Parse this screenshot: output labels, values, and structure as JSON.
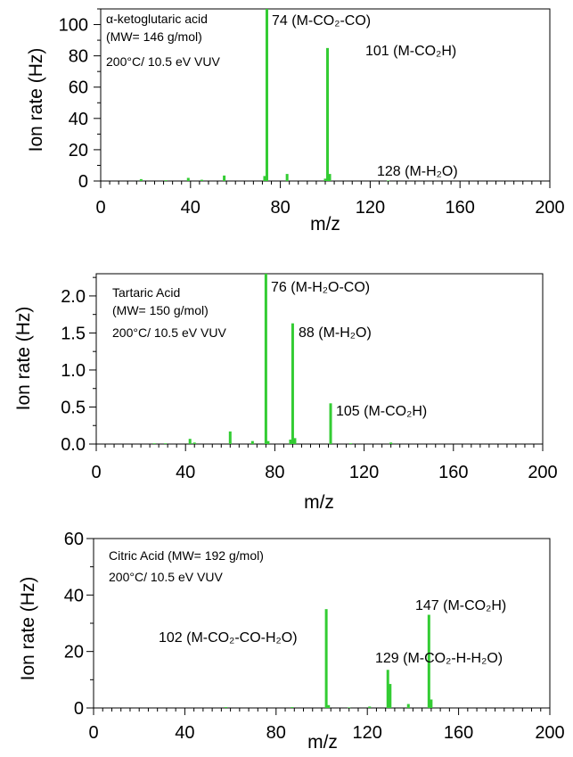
{
  "figure": {
    "panels": [
      {
        "info": [
          "α-ketoglutaric acid",
          "(MW= 146 g/mol)",
          "200°C/ 10.5 eV VUV"
        ],
        "annotations": [
          "74 (M-CO₂-CO)",
          "101 (M-CO₂H)",
          "128 (M-H₂O)"
        ],
        "x_ticks": [
          "0",
          "40",
          "80",
          "120",
          "160",
          "200"
        ],
        "y_ticks": [
          "0",
          "20",
          "40",
          "60",
          "80",
          "100"
        ]
      },
      {
        "info": [
          "Tartaric Acid",
          "(MW= 150 g/mol)",
          "200°C/ 10.5 eV VUV"
        ],
        "annotations": [
          "76 (M-H₂O-CO)",
          "88 (M-H₂O)",
          "105 (M-CO₂H)"
        ],
        "x_ticks": [
          "0",
          "40",
          "80",
          "120",
          "160",
          "200"
        ],
        "y_ticks": [
          "0.0",
          "0.5",
          "1.0",
          "1.5",
          "2.0"
        ]
      },
      {
        "info": [
          "Citric Acid  (MW= 192 g/mol)",
          "200°C/ 10.5 eV VUV"
        ],
        "annotations": [
          "102 (M-CO₂-CO-H₂O)",
          "129 (M-CO₂-H-H₂O)",
          "147 (M-CO₂H)"
        ],
        "x_ticks": [
          "0",
          "40",
          "80",
          "120",
          "160",
          "200"
        ],
        "y_ticks": [
          "0",
          "20",
          "40",
          "60"
        ]
      }
    ],
    "bar_color": "#33cc33"
  },
  "chart_data": [
    {
      "type": "bar",
      "title": "α-ketoglutaric acid",
      "xlabel": "m/z",
      "ylabel": "Ion rate (Hz)",
      "xlim": [
        0,
        200
      ],
      "ylim": [
        0,
        110
      ],
      "x": [
        18,
        29,
        39,
        45,
        55,
        73,
        74,
        83,
        100,
        101,
        102,
        128
      ],
      "values": [
        1.2,
        0.5,
        2.0,
        0.8,
        3.5,
        3.2,
        110,
        4.5,
        1.5,
        85,
        4.5,
        0.3
      ]
    },
    {
      "type": "bar",
      "title": "Tartaric Acid",
      "xlabel": "m/z",
      "ylabel": "Ion rate (Hz)",
      "xlim": [
        0,
        200
      ],
      "ylim": [
        0,
        2.3
      ],
      "x": [
        26,
        31,
        42,
        44,
        60,
        70,
        76,
        77,
        87,
        88,
        89,
        105,
        114,
        132
      ],
      "values": [
        0.01,
        0.01,
        0.07,
        0.02,
        0.17,
        0.04,
        2.3,
        0.04,
        0.06,
        1.63,
        0.08,
        0.55,
        0.01,
        0.02
      ]
    },
    {
      "type": "bar",
      "title": "Citric Acid",
      "xlabel": "m/z",
      "ylabel": "Ion rate (Hz)",
      "xlim": [
        0,
        200
      ],
      "ylim": [
        0,
        60
      ],
      "x": [
        58,
        87,
        102,
        103,
        112,
        121,
        129,
        130,
        138,
        147,
        148
      ],
      "values": [
        0.3,
        0.3,
        35,
        1.0,
        0.2,
        0.5,
        13.5,
        8.5,
        1.4,
        33,
        3.0
      ]
    }
  ]
}
